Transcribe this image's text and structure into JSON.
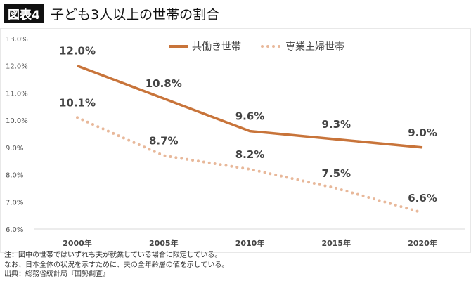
{
  "header": {
    "badge": "図表4",
    "title": "子ども3人以上の世帯の割合"
  },
  "notes": [
    "注：図中の世帯ではいずれも夫が就業している場合に限定している。",
    "なお、日本全体の状況を示すために、夫の全年齢層の値を示している。",
    "出典：総務省統計局『国勢調査』"
  ],
  "chart_data": {
    "type": "line",
    "categories": [
      "2000年",
      "2005年",
      "2010年",
      "2015年",
      "2020年"
    ],
    "yticks": [
      "6.0%",
      "7.0%",
      "8.0%",
      "9.0%",
      "10.0%",
      "11.0%",
      "12.0%",
      "13.0%"
    ],
    "ylim": [
      6,
      13
    ],
    "grid": false,
    "legend": "top-right",
    "series": [
      {
        "name": "共働き世帯",
        "values": [
          12.0,
          10.8,
          9.6,
          9.3,
          9.0
        ],
        "labels": [
          "12.0%",
          "10.8%",
          "9.6%",
          "9.3%",
          "9.0%"
        ],
        "color": "#c8743a",
        "style": "solid"
      },
      {
        "name": "専業主婦世帯",
        "values": [
          10.1,
          8.7,
          8.2,
          7.5,
          6.6
        ],
        "labels": [
          "10.1%",
          "8.7%",
          "8.2%",
          "7.5%",
          "6.6%"
        ],
        "color": "#e8b89a",
        "style": "dotted"
      }
    ]
  }
}
